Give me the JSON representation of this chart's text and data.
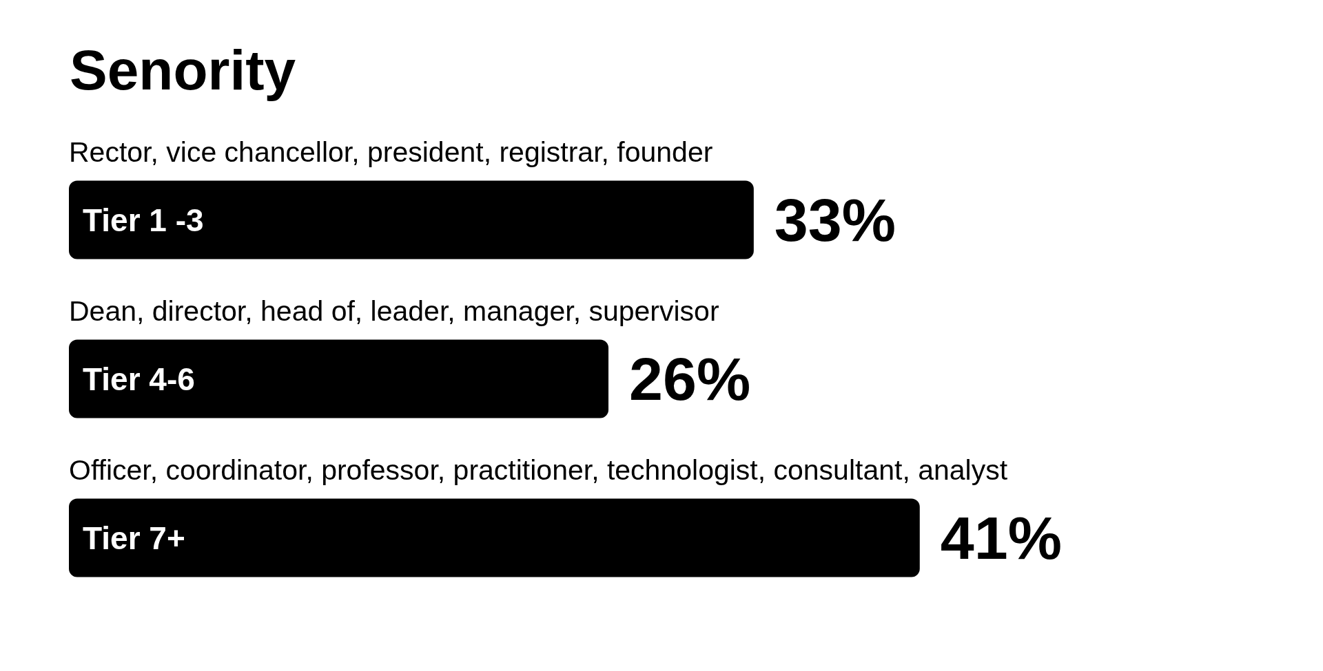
{
  "chart_data": {
    "type": "bar",
    "orientation": "horizontal",
    "title": "Senority",
    "categories": [
      "Tier 1 -3",
      "Tier 4-6",
      "Tier 7+"
    ],
    "values": [
      33,
      26,
      41
    ],
    "color": "#000000",
    "value_labels": [
      "33%",
      "26%",
      "41%"
    ],
    "annotations": [
      "Rector, vice chancellor, president, registrar, founder",
      "Dean, director, head of, leader, manager, supervisor",
      "Officer, coordinator, professor, practitioner, technologist, consultant, analyst"
    ]
  }
}
